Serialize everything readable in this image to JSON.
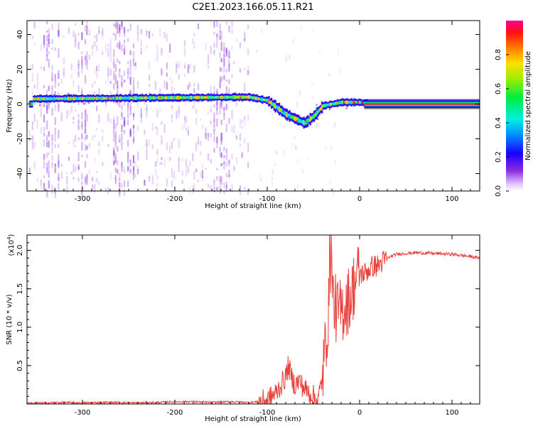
{
  "title": "C2E1.2023.166.05.11.R21",
  "chart_data": [
    {
      "type": "heatmap",
      "xlabel": "Height of straight line (km)",
      "ylabel": "Frequency (Hz)",
      "xlim": [
        -360,
        130
      ],
      "ylim": [
        -50,
        48
      ],
      "x_ticks": [
        -300,
        -200,
        -100,
        0,
        100
      ],
      "y_ticks": [
        40,
        20,
        0,
        -20,
        -40
      ],
      "colorbar": {
        "label": "Normalized spectral amplitude",
        "range": [
          0,
          1
        ],
        "ticks": [
          0.0,
          0.2,
          0.4,
          0.6,
          0.8
        ],
        "tick_labels": [
          "0.0",
          "0.2",
          "0.4",
          "0.6",
          "0.8"
        ]
      },
      "ridge": {
        "description_points_x": [
          -355,
          -120,
          -100,
          -80,
          -60,
          -50,
          -40,
          -20,
          0,
          10,
          130
        ],
        "description_points_freq": [
          3,
          4,
          2,
          -6,
          -11,
          -7,
          -1,
          1,
          1,
          0,
          0
        ]
      }
    },
    {
      "type": "line",
      "xlabel": "Height of straight line (km)",
      "ylabel": "SNR (10 * v/v)",
      "scale_label": "(x10⁴)",
      "scale_base": "(x10",
      "scale_exp": "4",
      "scale_close": ")",
      "xlim": [
        -360,
        130
      ],
      "ylim": [
        0,
        2.2
      ],
      "x_ticks": [
        -300,
        -200,
        -100,
        0,
        100
      ],
      "y_ticks": [
        0.5,
        1.0,
        1.5,
        2.0
      ],
      "y_tick_labels": [
        "0.5",
        "1.0",
        "1.5",
        "2.0"
      ],
      "color": "#e8413c",
      "series": [
        {
          "name": "SNR",
          "x": [
            -360,
            -340,
            -320,
            -300,
            -280,
            -260,
            -240,
            -220,
            -200,
            -180,
            -160,
            -140,
            -120,
            -110,
            -100,
            -95,
            -90,
            -85,
            -80,
            -77,
            -74,
            -70,
            -65,
            -60,
            -55,
            -50,
            -45,
            -40,
            -36,
            -32,
            -30,
            -28,
            -24,
            -20,
            -15,
            -10,
            -5,
            0,
            5,
            10,
            15,
            20,
            25,
            30,
            40,
            50,
            60,
            80,
            100,
            120,
            130
          ],
          "y": [
            0.01,
            0.015,
            0.02,
            0.015,
            0.02,
            0.02,
            0.015,
            0.02,
            0.03,
            0.03,
            0.02,
            0.03,
            0.02,
            0.03,
            0.05,
            0.1,
            0.15,
            0.25,
            0.35,
            0.5,
            0.35,
            0.25,
            0.3,
            0.2,
            0.15,
            0.1,
            0.05,
            0.35,
            0.9,
            1.4,
            1.6,
            1.3,
            1.2,
            1.2,
            1.3,
            1.4,
            1.6,
            1.7,
            1.7,
            1.75,
            1.8,
            1.8,
            1.85,
            1.9,
            1.95,
            1.96,
            1.97,
            1.96,
            1.95,
            1.92,
            1.9
          ]
        }
      ]
    }
  ]
}
